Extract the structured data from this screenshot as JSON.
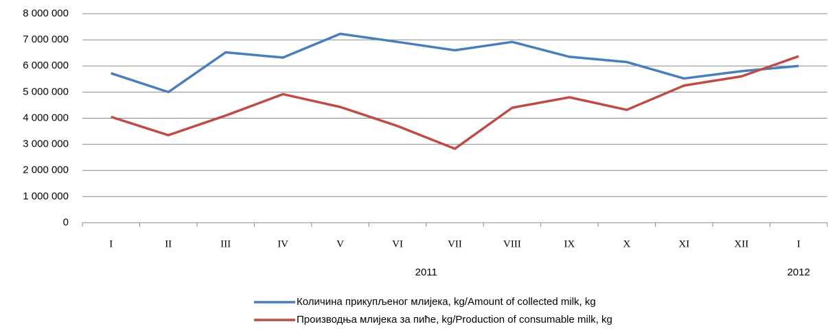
{
  "chart_data": {
    "type": "line",
    "categories": [
      "I",
      "II",
      "III",
      "IV",
      "V",
      "VI",
      "VII",
      "VIII",
      "IX",
      "X",
      "XI",
      "XII",
      "I"
    ],
    "x_groups": [
      {
        "label": "2011",
        "count": 12
      },
      {
        "label": "2012",
        "count": 1
      }
    ],
    "series": [
      {
        "name": "Количина прикупљеног млијека, kg/Amount of collected milk, kg",
        "color": "#4a7ebb",
        "values": [
          5720000,
          5000000,
          6520000,
          6320000,
          7230000,
          6920000,
          6600000,
          6920000,
          6350000,
          6150000,
          5520000,
          5800000,
          6000000
        ]
      },
      {
        "name": "Производња млијека за пиће, kg/Production of consumable milk, kg",
        "color": "#be4b48",
        "values": [
          4050000,
          3350000,
          4100000,
          4920000,
          4430000,
          3700000,
          2830000,
          4400000,
          4800000,
          4320000,
          5250000,
          5600000,
          6370000
        ]
      }
    ],
    "ylim": [
      0,
      8000000
    ],
    "yticks": [
      {
        "value": 0,
        "label": "0"
      },
      {
        "value": 1000000,
        "label": "1 000 000"
      },
      {
        "value": 2000000,
        "label": "2 000 000"
      },
      {
        "value": 3000000,
        "label": "3 000 000"
      },
      {
        "value": 4000000,
        "label": "4 000 000"
      },
      {
        "value": 5000000,
        "label": "5 000 000"
      },
      {
        "value": 6000000,
        "label": "6 000 000"
      },
      {
        "value": 7000000,
        "label": "7 000 000"
      },
      {
        "value": 8000000,
        "label": "8 000 000"
      }
    ],
    "grid": true,
    "legend": "bottom"
  }
}
